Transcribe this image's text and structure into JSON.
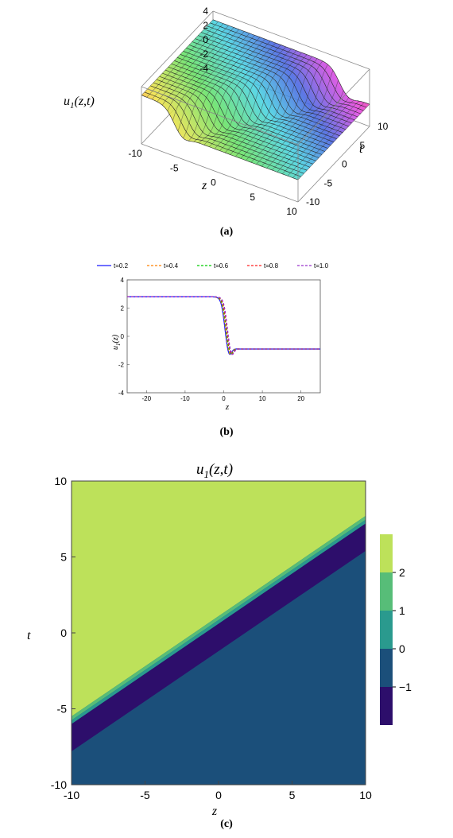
{
  "captions": {
    "a": "(a)",
    "b": "(b)",
    "c": "(c)"
  },
  "chart_data": [
    {
      "type": "surface3d",
      "zlabel": "u",
      "zlabel_sub": "1",
      "zlabel_args": "(z,t)",
      "xlabel": "z",
      "ylabel": "t",
      "x_ticks": [
        "-10",
        "-5",
        "0",
        "5",
        "10"
      ],
      "y_ticks": [
        "-10",
        "-5",
        "0",
        "5",
        "10"
      ],
      "z_ticks": [
        "4",
        "2",
        "0",
        "-2",
        "-4"
      ],
      "xlim": [
        -10,
        10
      ],
      "ylim": [
        -10,
        10
      ],
      "zlim": [
        -4,
        4
      ],
      "upper_level": 2.8,
      "lower_level": -0.9,
      "colors": [
        "#ff3030",
        "#f0e040",
        "#60e060",
        "#40d0e0",
        "#4060e0",
        "#e040e0",
        "#ff3060"
      ]
    },
    {
      "type": "line",
      "xlabel": "z",
      "ylabel": "u",
      "ylabel_sub": "1",
      "ylabel_args": "(z)",
      "xlim": [
        -25,
        25
      ],
      "ylim": [
        -4,
        4
      ],
      "x_ticks": [
        "-20",
        "-10",
        "0",
        "10",
        "20"
      ],
      "x_tick_values": [
        -20,
        -10,
        0,
        10,
        20
      ],
      "y_ticks": [
        "4",
        "2",
        "0",
        "-2",
        "-4"
      ],
      "y_tick_values": [
        4,
        2,
        0,
        -2,
        -4
      ],
      "legend_position": "top",
      "series": [
        {
          "name": "t=0.2",
          "t": 0.2,
          "color": "#1a1aff",
          "dash": "solid"
        },
        {
          "name": "t=0.4",
          "t": 0.4,
          "color": "#ff8000",
          "dash": "dashed"
        },
        {
          "name": "t=0.6",
          "t": 0.6,
          "color": "#00cc00",
          "dash": "dashed"
        },
        {
          "name": "t=0.8",
          "t": 0.8,
          "color": "#ff2020",
          "dash": "dashed"
        },
        {
          "name": "t=1.0",
          "t": 1.0,
          "color": "#9933cc",
          "dash": "dashed"
        }
      ],
      "upper_level": 2.8,
      "lower_level": -0.9,
      "dip_min": -1.3
    },
    {
      "type": "contour",
      "title": "u",
      "title_sub": "1",
      "title_args": "(z,t)",
      "xlabel": "z",
      "ylabel": "t",
      "xlim": [
        -10,
        10
      ],
      "ylim": [
        -10,
        10
      ],
      "x_ticks": [
        "-10",
        "-5",
        "0",
        "5",
        "10"
      ],
      "x_tick_values": [
        -10,
        -5,
        0,
        5,
        10
      ],
      "y_ticks": [
        "10",
        "5",
        "0",
        "-5",
        "-10"
      ],
      "y_tick_values": [
        10,
        5,
        0,
        -5,
        -10
      ],
      "front_line": {
        "t_at_z_min": -5.5,
        "t_at_z_max": 7.7
      },
      "bands": [
        {
          "from": 0.0,
          "to": 0.25,
          "color": "#57bd78"
        },
        {
          "from": 0.25,
          "to": 0.5,
          "color": "#2a9a8e"
        },
        {
          "from": 0.5,
          "to": 2.3,
          "color": "#2d0e6b"
        }
      ],
      "upper_color": "#bde15a",
      "lower_color": "#1b4f7a",
      "legend": {
        "colors": [
          "#bde15a",
          "#57bd78",
          "#2a9a8e",
          "#1b4f7a",
          "#2d0e6b"
        ],
        "labels": [
          "2",
          "1",
          "0",
          "−1"
        ]
      }
    }
  ]
}
